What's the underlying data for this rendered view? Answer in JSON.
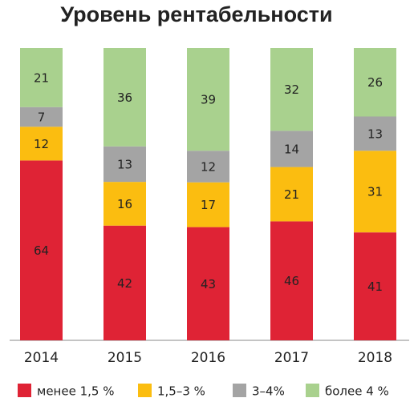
{
  "chart_data": {
    "type": "stacked_bar_100",
    "title": "Уровень рентабельности",
    "categories": [
      "2014",
      "2015",
      "2016",
      "2017",
      "2018"
    ],
    "series": [
      {
        "name": "менее 1,5 %",
        "color": "#df2335",
        "values": [
          64,
          42,
          43,
          46,
          41
        ]
      },
      {
        "name": "1,5–3 %",
        "color": "#fbbd10",
        "values": [
          12,
          16,
          17,
          21,
          31
        ]
      },
      {
        "name": "3–4%",
        "color": "#a4a4a4",
        "values": [
          7,
          13,
          12,
          14,
          13
        ]
      },
      {
        "name": "более 4 %",
        "color": "#a9d18e",
        "values": [
          21,
          36,
          39,
          32,
          26
        ]
      }
    ],
    "legend": "bottom"
  }
}
